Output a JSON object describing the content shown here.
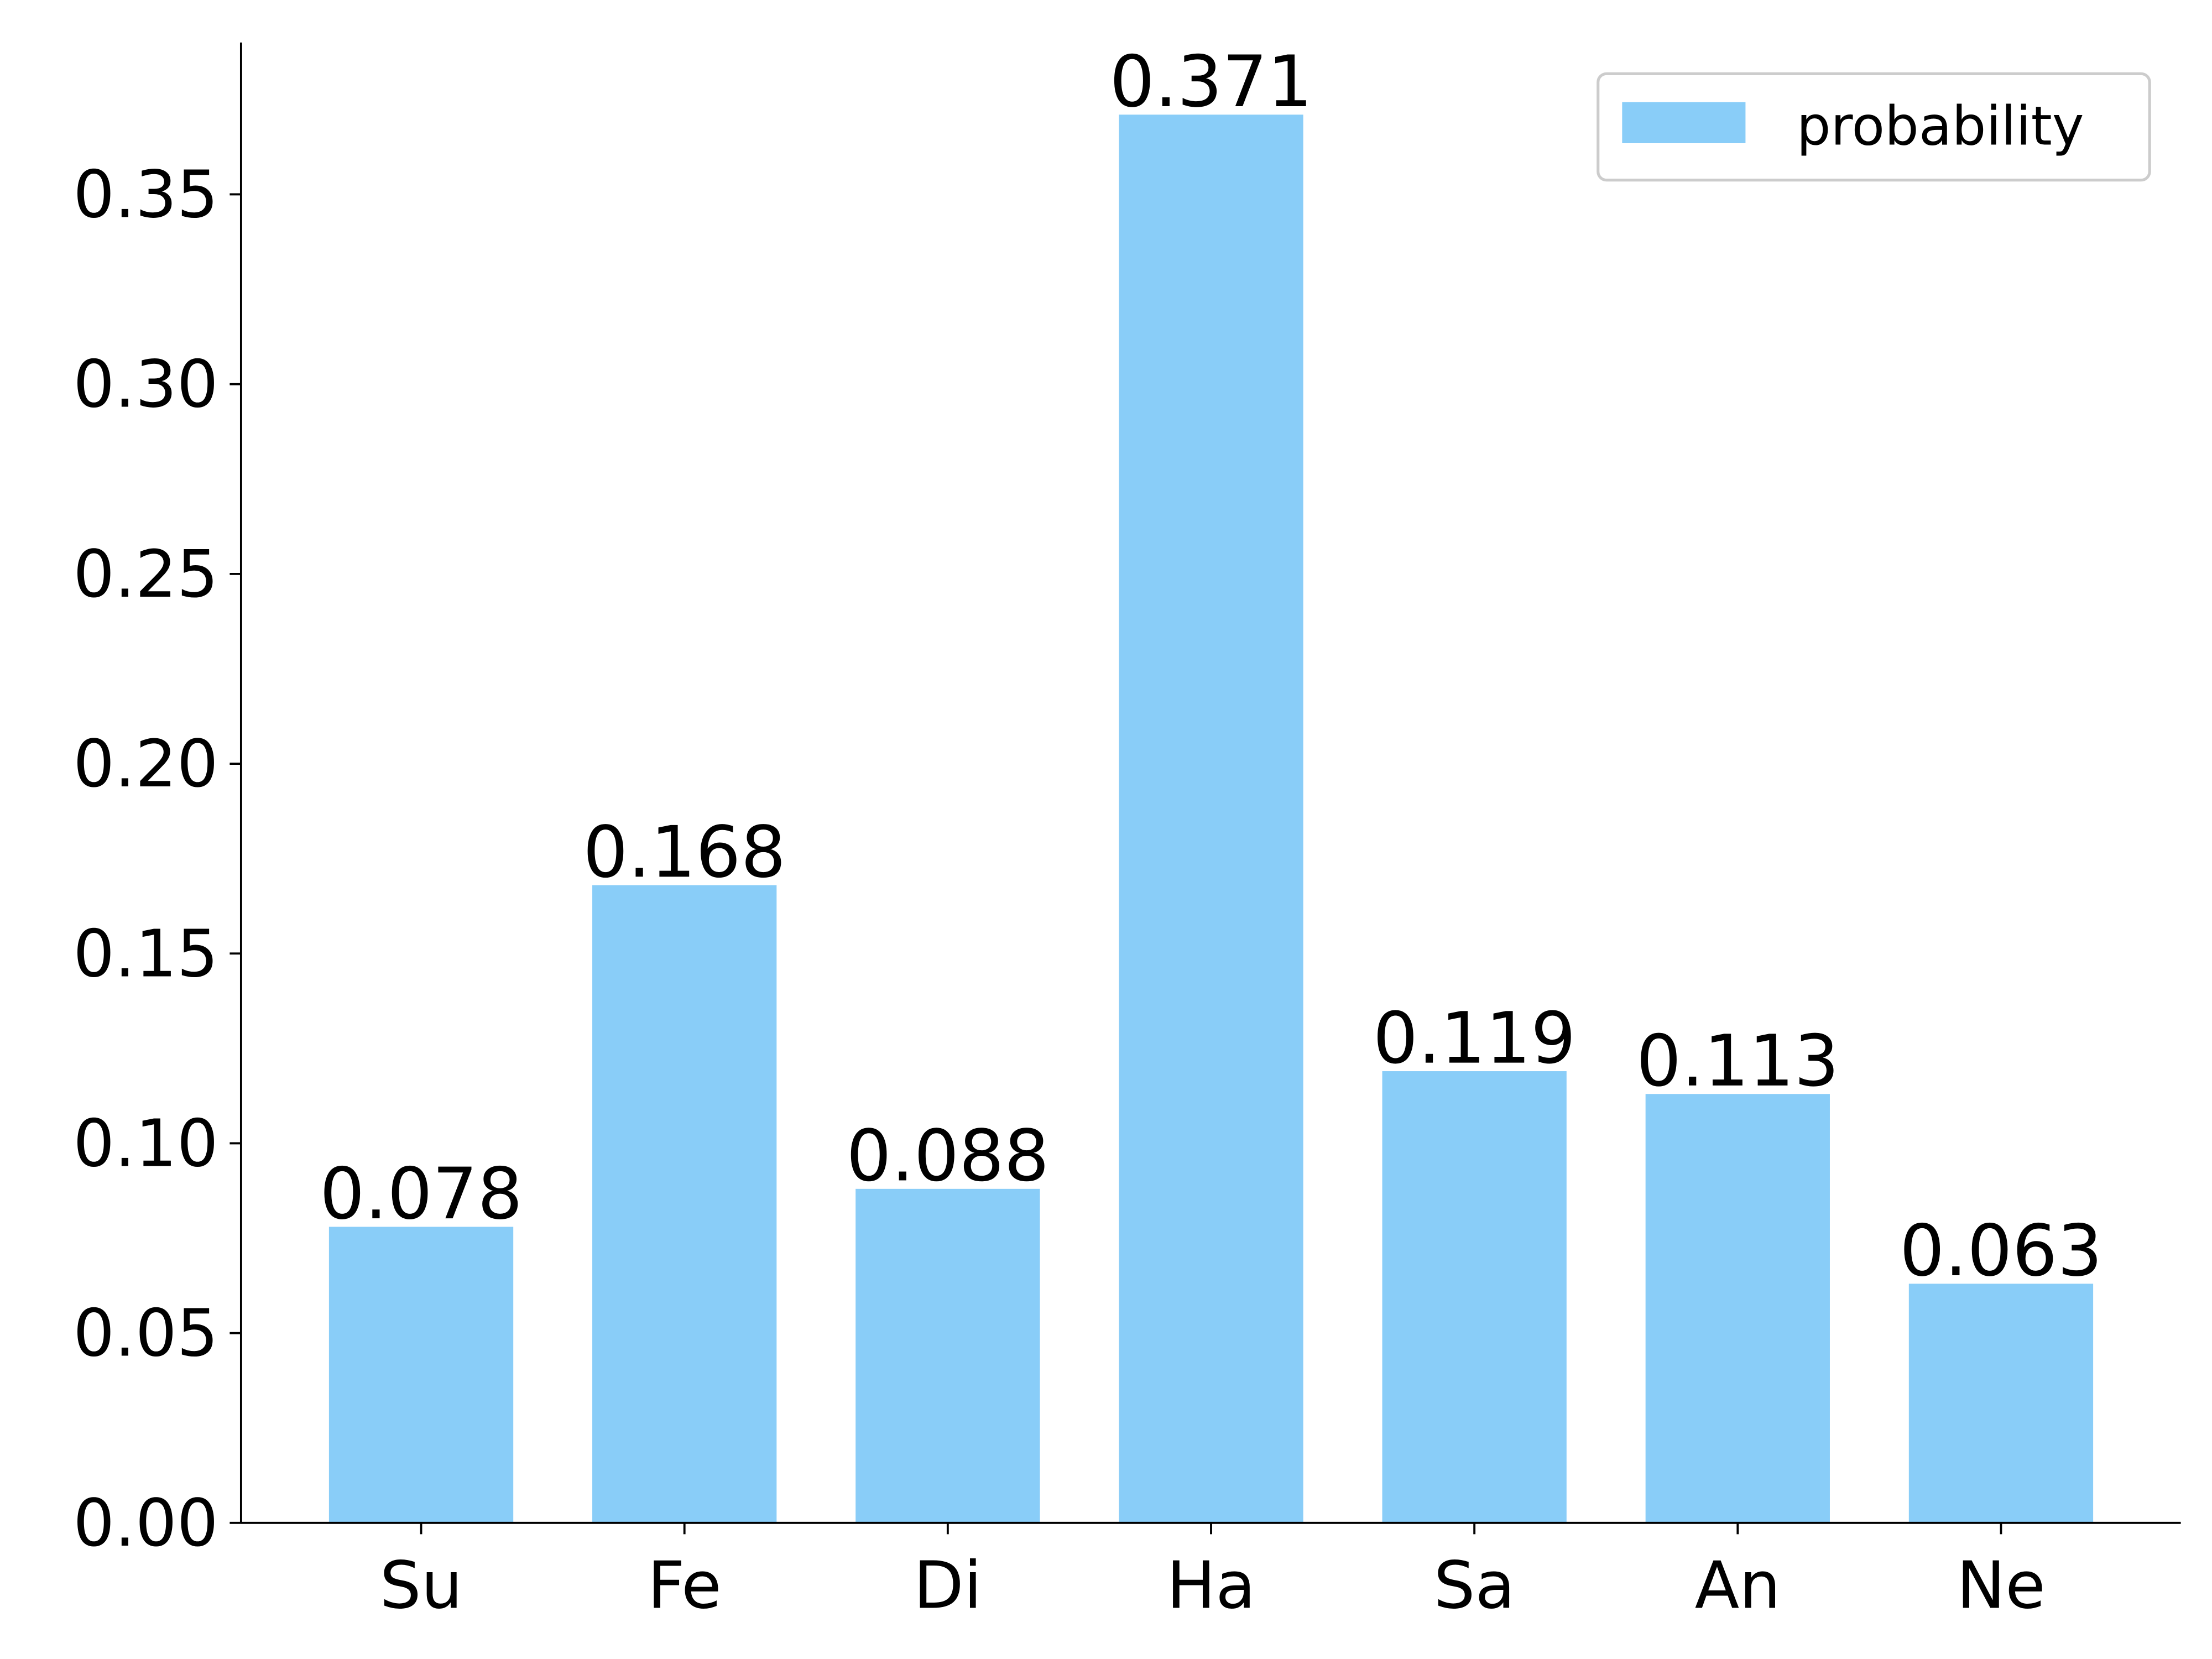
{
  "chart_data": {
    "type": "bar",
    "categories": [
      "Su",
      "Fe",
      "Di",
      "Ha",
      "Sa",
      "An",
      "Ne"
    ],
    "series": [
      {
        "name": "probability",
        "color": "#89cdf8",
        "values": [
          0.078,
          0.168,
          0.088,
          0.371,
          0.119,
          0.113,
          0.063
        ]
      }
    ],
    "ylim": [
      0,
      0.39
    ],
    "yticks": [
      {
        "value": 0,
        "label": "0.00"
      },
      0.05,
      {
        "value": 0.1,
        "label": "0.10"
      },
      0.15,
      {
        "value": 0.2,
        "label": "0.20"
      },
      0.25,
      {
        "value": 0.3,
        "label": "0.30"
      },
      0.35
    ],
    "legend": "upper right"
  }
}
